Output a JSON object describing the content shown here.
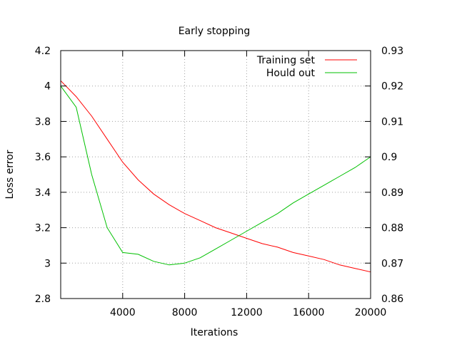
{
  "chart_data": {
    "type": "line",
    "title": "Early stopping",
    "xlabel": "Iterations",
    "ylabel": "Loss error",
    "y2label": "",
    "xlim": [
      0,
      20000
    ],
    "ylim": [
      2.8,
      4.2
    ],
    "y2lim": [
      0.86,
      0.93
    ],
    "xticks": [
      4000,
      8000,
      12000,
      16000,
      20000
    ],
    "xtick_labels": [
      "4000",
      "8000",
      "12000",
      "16000",
      "20000"
    ],
    "yticks": [
      2.8,
      3.0,
      3.2,
      3.4,
      3.6,
      3.8,
      4.0,
      4.2
    ],
    "ytick_labels": [
      "2.8",
      "3",
      "3.2",
      "3.4",
      "3.6",
      "3.8",
      "4",
      "4.2"
    ],
    "y2ticks": [
      0.86,
      0.87,
      0.88,
      0.89,
      0.9,
      0.91,
      0.92,
      0.93
    ],
    "y2tick_labels": [
      "0.86",
      "0.87",
      "0.88",
      "0.89",
      "0.9",
      "0.91",
      "0.92",
      "0.93"
    ],
    "grid": true,
    "legend_position": "top-right",
    "series": [
      {
        "name": "Training set",
        "color": "#ff0000",
        "axis": "left",
        "x": [
          0,
          1000,
          2000,
          3000,
          4000,
          5000,
          6000,
          7000,
          8000,
          9000,
          10000,
          11000,
          12000,
          13000,
          14000,
          15000,
          16000,
          17000,
          18000,
          19000,
          20000
        ],
        "y": [
          4.03,
          3.94,
          3.83,
          3.7,
          3.57,
          3.47,
          3.39,
          3.33,
          3.28,
          3.24,
          3.2,
          3.17,
          3.14,
          3.11,
          3.09,
          3.06,
          3.04,
          3.02,
          2.99,
          2.97,
          2.95
        ]
      },
      {
        "name": "Hould out",
        "color": "#00c000",
        "axis": "left",
        "x": [
          0,
          1000,
          2000,
          3000,
          4000,
          5000,
          6000,
          7000,
          8000,
          9000,
          10000,
          11000,
          12000,
          13000,
          14000,
          15000,
          16000,
          17000,
          18000,
          19000,
          20000
        ],
        "y": [
          4.0,
          3.88,
          3.5,
          3.2,
          3.06,
          3.05,
          3.01,
          2.99,
          3.0,
          3.03,
          3.08,
          3.13,
          3.18,
          3.23,
          3.28,
          3.34,
          3.39,
          3.44,
          3.49,
          3.54,
          3.6
        ]
      }
    ]
  }
}
